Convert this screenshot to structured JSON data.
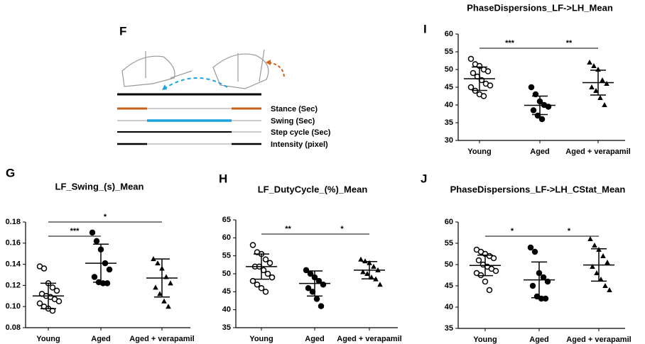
{
  "diagram": {
    "label": "F",
    "legend": [
      "Stance (Sec)",
      "Swing (Sec)",
      "Step cycle (Sec)",
      "Intensity (pixel)"
    ]
  },
  "chart_data": [
    {
      "type": "dot-plot",
      "label": "G",
      "title": "LF_Swing_(s)_Mean",
      "categories": [
        "Young",
        "Aged",
        "Aged + verapamil"
      ],
      "markers": [
        "open-circle",
        "circle",
        "triangle"
      ],
      "color": "#000000",
      "groups": [
        {
          "values": [
            0.138,
            0.136,
            0.122,
            0.118,
            0.115,
            0.112,
            0.11,
            0.109,
            0.107,
            0.105,
            0.103,
            0.1,
            0.098,
            0.096
          ],
          "mean": 0.11,
          "sd": 0.012
        },
        {
          "values": [
            0.17,
            0.162,
            0.154,
            0.141,
            0.135,
            0.128,
            0.123,
            0.122,
            0.122
          ],
          "mean": 0.141,
          "sd": 0.018
        },
        {
          "values": [
            0.145,
            0.141,
            0.136,
            0.128,
            0.122,
            0.118,
            0.112,
            0.105,
            0.1
          ],
          "mean": 0.127,
          "sd": 0.018
        }
      ],
      "significance": [
        {
          "groups": [
            0,
            1
          ],
          "label": "***"
        },
        {
          "groups": [
            0,
            2
          ],
          "label": "*"
        }
      ],
      "ylim": [
        0.08,
        0.18
      ],
      "yticks": [
        0.08,
        {
          "value": 0.1,
          "label": "0.10"
        },
        0.12,
        0.14,
        0.16,
        0.18
      ]
    },
    {
      "type": "dot-plot",
      "label": "H",
      "title": "LF_DutyCycle_(%)_Mean",
      "categories": [
        "Young",
        "Aged",
        "Aged + verapamil"
      ],
      "markers": [
        "open-circle",
        "circle",
        "triangle"
      ],
      "color": "#000000",
      "groups": [
        {
          "values": [
            58,
            56,
            55.5,
            54,
            53,
            52,
            52,
            51,
            50,
            49,
            48,
            47,
            46,
            45
          ],
          "mean": 52,
          "sd": 3.5
        },
        {
          "values": [
            51,
            50,
            49,
            48,
            47,
            46,
            45,
            43,
            41
          ],
          "mean": 47.3,
          "sd": 3.5
        },
        {
          "values": [
            54,
            53.5,
            53,
            52,
            51,
            50.5,
            50,
            49,
            48.5,
            47
          ],
          "mean": 51,
          "sd": 2.4
        }
      ],
      "significance": [
        {
          "groups": [
            0,
            1
          ],
          "label": "**"
        },
        {
          "groups": [
            1,
            2
          ],
          "label": "*"
        }
      ],
      "ylim": [
        35,
        65
      ],
      "yticks": [
        35,
        40,
        45,
        50,
        55,
        60,
        65
      ]
    },
    {
      "type": "dot-plot",
      "label": "I",
      "title": "PhaseDispersions_LF->LH_Mean",
      "categories": [
        "Young",
        "Aged",
        "Aged + verapamil"
      ],
      "markers": [
        "open-circle",
        "circle",
        "triangle"
      ],
      "color": "#000000",
      "groups": [
        {
          "values": [
            53,
            51.5,
            51,
            50,
            49.5,
            49,
            48,
            47,
            46,
            45.5,
            45,
            44,
            43,
            42.5
          ],
          "mean": 47.4,
          "sd": 3.3
        },
        {
          "values": [
            45,
            43,
            41,
            40,
            39.5,
            38.5,
            37,
            36
          ],
          "mean": 39.9,
          "sd": 2.6
        },
        {
          "values": [
            52,
            51,
            50,
            47,
            46,
            45,
            44,
            42,
            40
          ],
          "mean": 46.3,
          "sd": 3.5
        }
      ],
      "significance": [
        {
          "groups": [
            0,
            1
          ],
          "label": "***"
        },
        {
          "groups": [
            1,
            2
          ],
          "label": "**"
        }
      ],
      "ylim": [
        30,
        60
      ],
      "yticks": [
        30,
        35,
        40,
        45,
        50,
        55,
        60
      ]
    },
    {
      "type": "dot-plot",
      "label": "J",
      "title": "PhaseDispersions_LF->LH_CStat_Mean",
      "categories": [
        "Young",
        "Aged",
        "Aged + verapamil"
      ],
      "markers": [
        "open-circle",
        "circle",
        "triangle"
      ],
      "color": "#000000",
      "groups": [
        {
          "values": [
            53.5,
            53,
            52.5,
            52,
            51.5,
            51,
            50,
            49.5,
            49,
            48.5,
            48,
            47.5,
            46,
            44
          ],
          "mean": 49.8,
          "sd": 2.4
        },
        {
          "values": [
            54,
            53,
            48,
            47,
            46,
            45,
            42.5,
            42,
            42
          ],
          "mean": 46.4,
          "sd": 4.2
        },
        {
          "values": [
            56,
            54.5,
            53.5,
            52,
            50.5,
            49.5,
            48,
            46.5,
            45,
            44
          ],
          "mean": 49.9,
          "sd": 3.8
        }
      ],
      "significance": [
        {
          "groups": [
            0,
            1
          ],
          "label": "*"
        },
        {
          "groups": [
            1,
            2
          ],
          "label": "*"
        }
      ],
      "ylim": [
        35,
        60
      ],
      "yticks": [
        35,
        40,
        45,
        50,
        55,
        60
      ]
    }
  ]
}
